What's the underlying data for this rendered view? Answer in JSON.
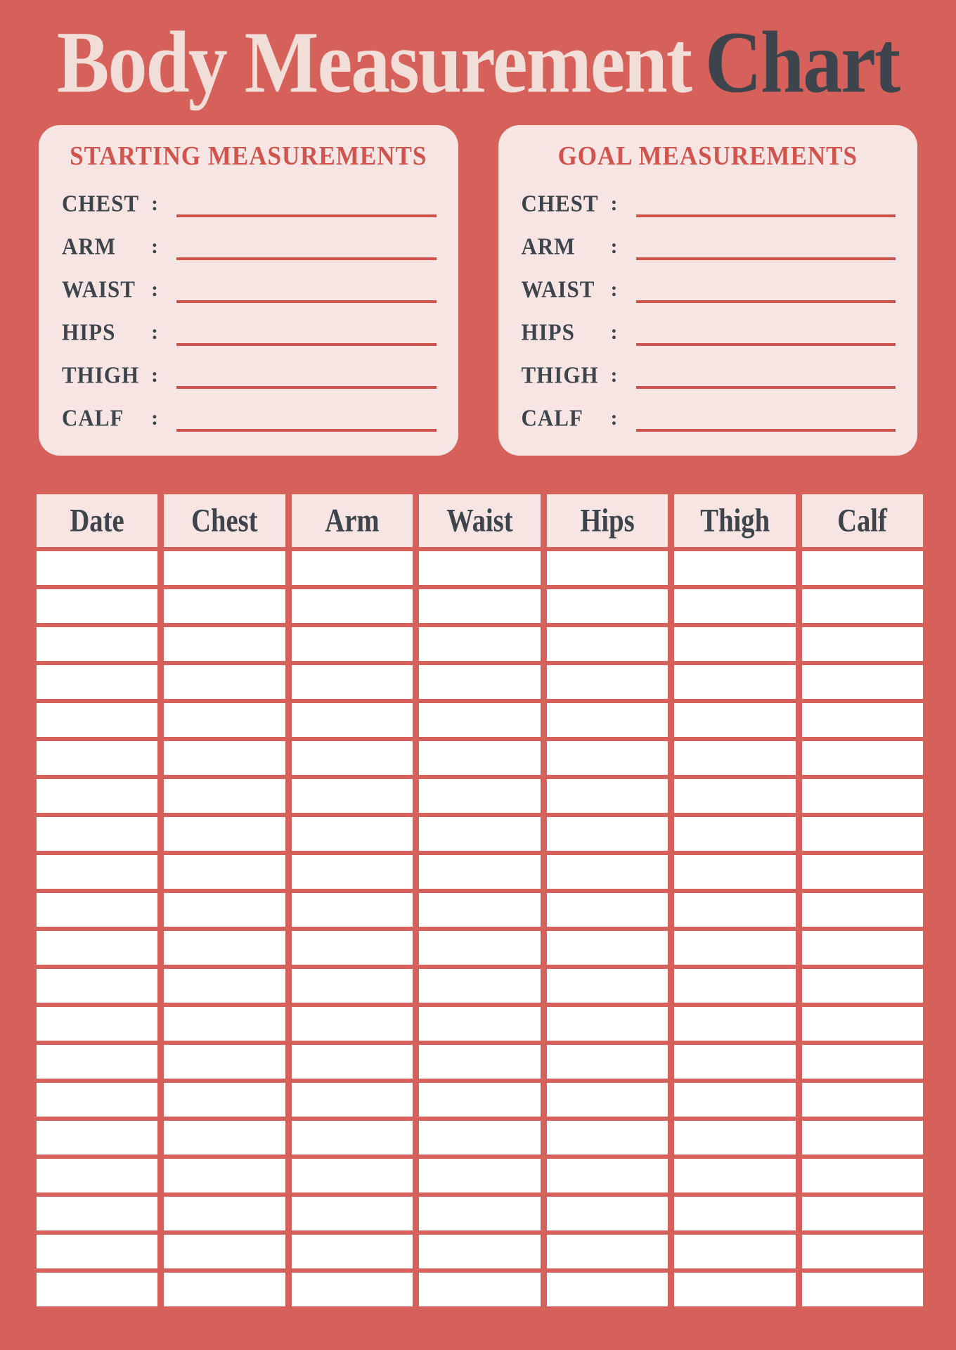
{
  "title": {
    "light": "Body Measurement",
    "dark": "Chart"
  },
  "panels": [
    {
      "title": "STARTING MEASUREMENTS",
      "fields": [
        {
          "label": "CHEST",
          "separator": ":",
          "value": ""
        },
        {
          "label": "ARM",
          "separator": ":",
          "value": ""
        },
        {
          "label": "WAIST",
          "separator": ":",
          "value": ""
        },
        {
          "label": "HIPS",
          "separator": ":",
          "value": ""
        },
        {
          "label": "THIGH",
          "separator": ":",
          "value": ""
        },
        {
          "label": "CALF",
          "separator": ":",
          "value": ""
        }
      ]
    },
    {
      "title": "GOAL MEASUREMENTS",
      "fields": [
        {
          "label": "CHEST",
          "separator": ":",
          "value": ""
        },
        {
          "label": "ARM",
          "separator": ":",
          "value": ""
        },
        {
          "label": "WAIST",
          "separator": ":",
          "value": ""
        },
        {
          "label": "HIPS",
          "separator": ":",
          "value": ""
        },
        {
          "label": "THIGH",
          "separator": ":",
          "value": ""
        },
        {
          "label": "CALF",
          "separator": ":",
          "value": ""
        }
      ]
    },
    {
      "note": "chart_table",
      "title": ""
    }
  ],
  "table": {
    "headers": [
      "Date",
      "Chest",
      "Arm",
      "Waist",
      "Hips",
      "Thigh",
      "Calf"
    ],
    "row_count": 20,
    "cell_value": ""
  },
  "colors": {
    "background": "#d6615b",
    "panel_pink": "#f6e5e3",
    "title_cream": "#f2ded9",
    "dark_slate": "#3e444c",
    "accent_red": "#d0534d",
    "cell_white": "#ffffff"
  }
}
